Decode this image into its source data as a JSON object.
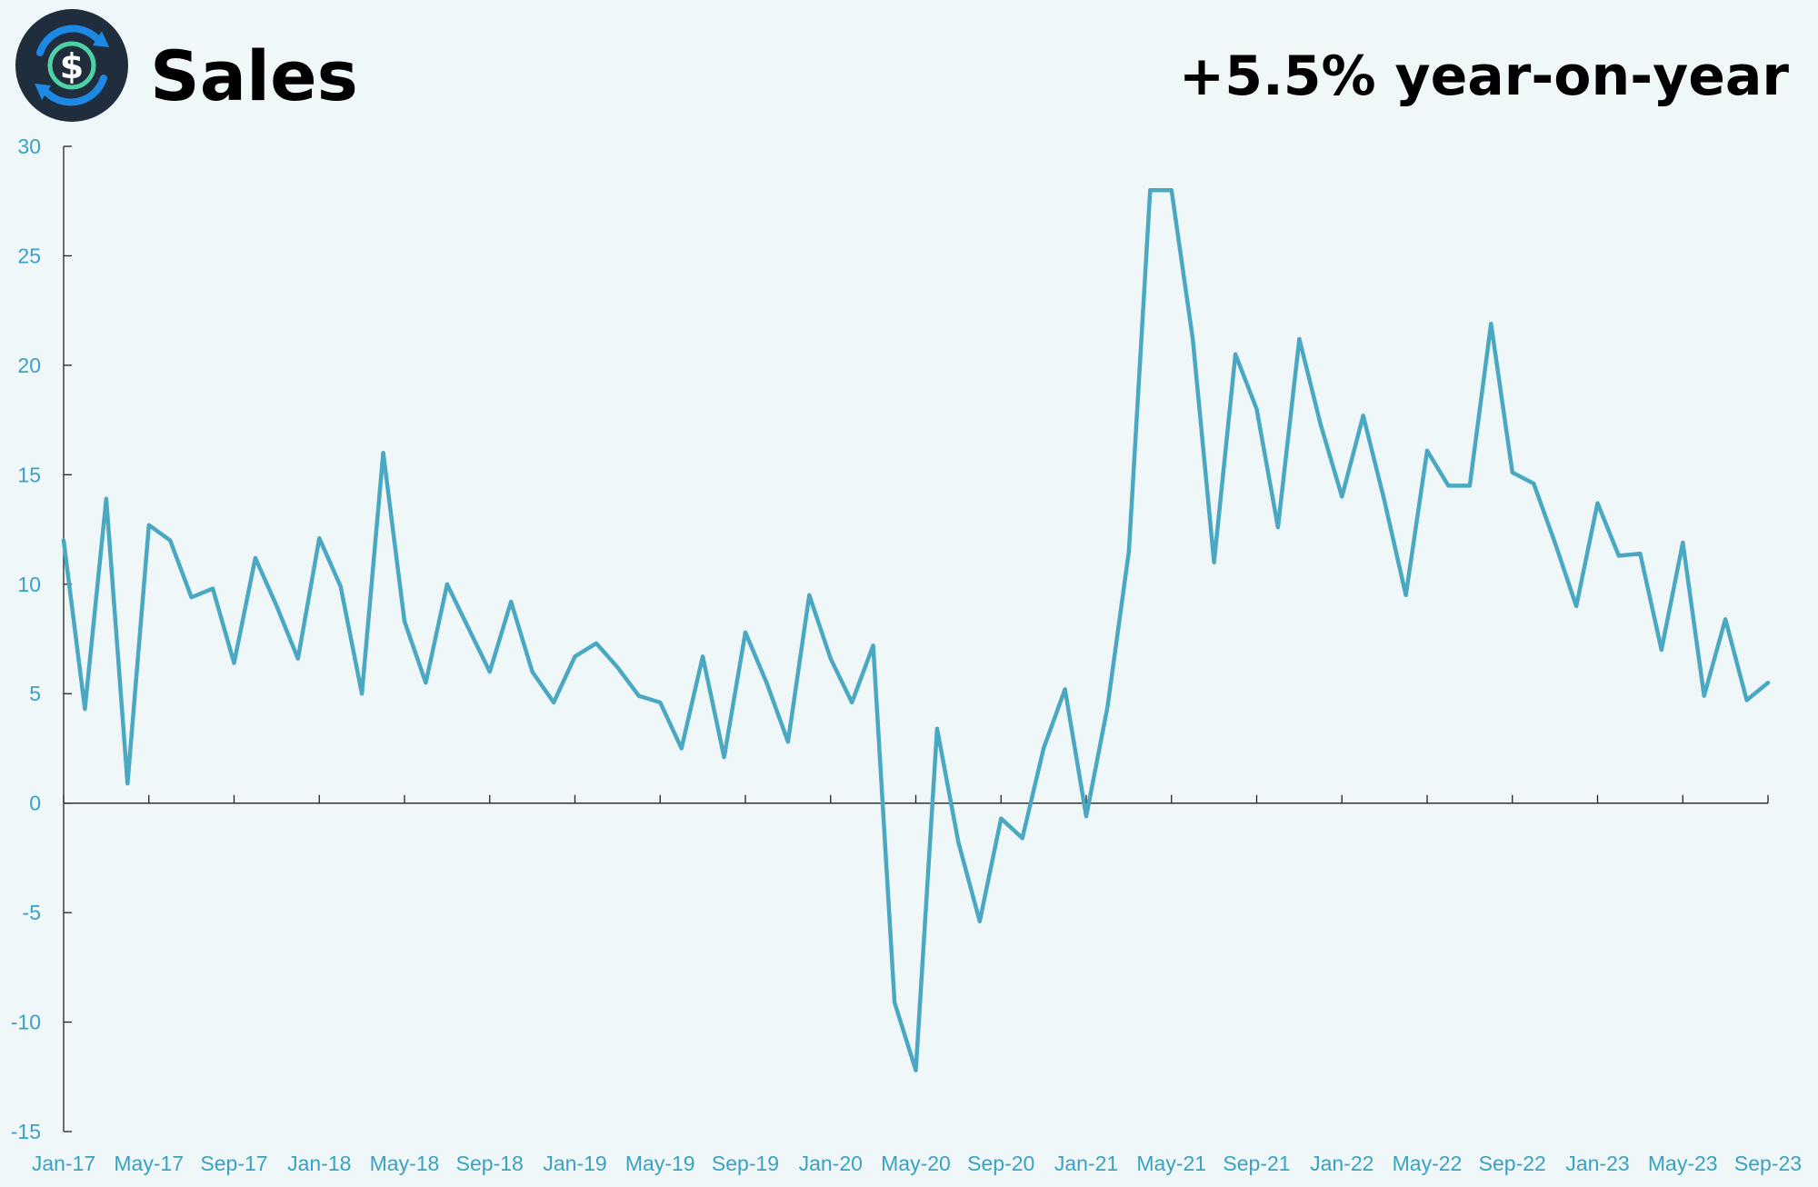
{
  "header": {
    "title": "Sales",
    "headline": "+5.5% year-on-year",
    "logo_icon": "dollar-cycle-icon"
  },
  "colors": {
    "background": "#f0f7f9",
    "line": "#4aa8c2",
    "axis": "#222222",
    "tick_label": "#3aa1c2",
    "logo_bg": "#1f2d3d",
    "logo_blue": "#1e88e5",
    "logo_green": "#4fd1a5"
  },
  "chart_data": {
    "type": "line",
    "ylim": [
      -15,
      30
    ],
    "y_ticks": [
      -15,
      -10,
      -5,
      0,
      5,
      10,
      15,
      20,
      25,
      30
    ],
    "x_tick_labels": [
      "Jan-17",
      "May-17",
      "Sep-17",
      "Jan-18",
      "May-18",
      "Sep-18",
      "Jan-19",
      "May-19",
      "Sep-19",
      "Jan-20",
      "May-20",
      "Sep-20",
      "Jan-21",
      "May-21",
      "Sep-21",
      "Jan-22",
      "May-22",
      "Sep-22",
      "Jan-23",
      "May-23",
      "Sep-23"
    ],
    "x_tick_every": 4,
    "grid": false,
    "legend": "none",
    "series": [
      {
        "values": [
          12.0,
          4.3,
          13.9,
          0.9,
          12.7,
          12.0,
          9.4,
          9.8,
          6.4,
          11.2,
          9.0,
          6.6,
          12.1,
          9.9,
          5.0,
          16.0,
          8.3,
          5.5,
          10.0,
          8.0,
          6.0,
          9.2,
          6.0,
          4.6,
          6.7,
          7.3,
          6.2,
          4.9,
          4.6,
          2.5,
          6.7,
          2.1,
          7.8,
          5.5,
          2.8,
          9.5,
          6.6,
          4.6,
          7.2,
          -9.1,
          -12.2,
          3.4,
          -1.8,
          -5.4,
          -0.7,
          -1.6,
          2.5,
          5.2,
          -0.6,
          4.4,
          11.5,
          28.0,
          28.0,
          21.2,
          11.0,
          20.5,
          18.0,
          12.6,
          21.2,
          17.3,
          14.0,
          17.7,
          13.8,
          9.5,
          16.1,
          14.5,
          14.5,
          21.9,
          15.1,
          14.6,
          11.9,
          9.0,
          13.7,
          11.3,
          11.4,
          7.0,
          11.9,
          4.9,
          8.4,
          4.7,
          5.5
        ]
      }
    ]
  }
}
